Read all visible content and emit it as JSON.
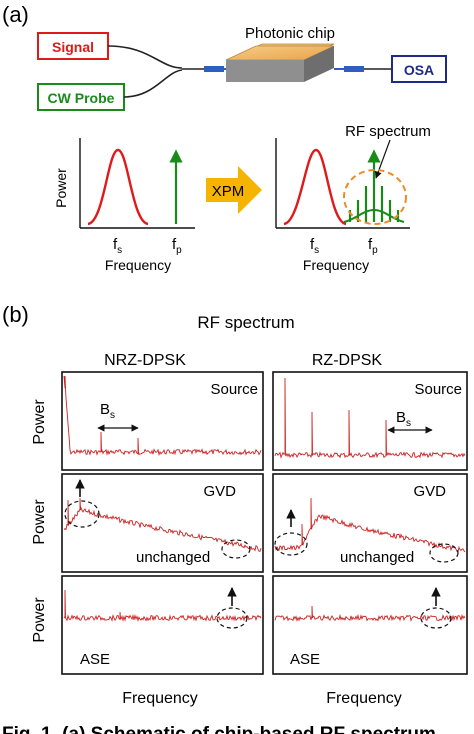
{
  "panel_a": {
    "label": "(a)",
    "signal_label": "Signal",
    "probe_label": "CW Probe",
    "chip_label": "Photonic chip",
    "osa_label": "OSA",
    "rf_spectrum_label": "RF spectrum",
    "xpm_label": "XPM",
    "power_label": "Power",
    "frequency_label": "Frequency",
    "fs_label": "f",
    "fs_sub": "s",
    "fp_label": "f",
    "fp_sub": "p"
  },
  "panel_b": {
    "label": "(b)",
    "title": "RF spectrum",
    "col_left": "NRZ-DPSK",
    "col_right": "RZ-DPSK",
    "power_label": "Power",
    "frequency_label": "Frequency",
    "source_label": "Source",
    "gvd_label": "GVD",
    "ase_label": "ASE",
    "unchanged_label": "unchanged",
    "bs_label": "B",
    "bs_sub": "s"
  },
  "caption": "Fig. 1. (a) Schematic of chip-based RF spectrum",
  "colors": {
    "signal": "#e0191b",
    "probe": "#1a8a1a",
    "osa": "#1e2a8a",
    "xpm_arrow": "#f5b400",
    "rf_circle": "#f08a24",
    "trace": "#cc2222",
    "chip_top": "#f2b661"
  }
}
